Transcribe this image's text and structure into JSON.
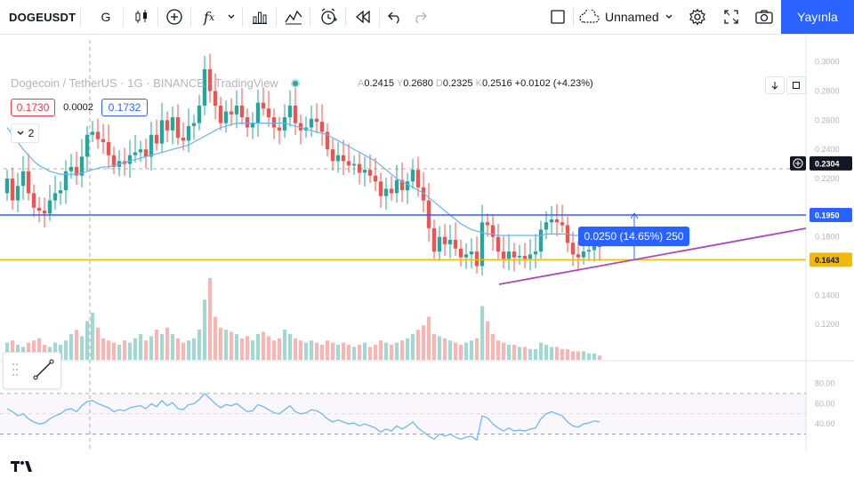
{
  "toolbar": {
    "symbol": "DOGEUSDT",
    "interval": "G",
    "layout_name": "Unnamed",
    "publish_label": "Yayınla"
  },
  "legend": {
    "title": "Dogecoin / TetherUS · 1G · BINANCE · TradingView",
    "open_label": "A",
    "open": "0.2415",
    "high_label": "Y",
    "high": "0.2680",
    "low_label": "D",
    "low": "0.2325",
    "close_label": "K",
    "close": "0.2516",
    "change": "+0.0102 (+4.23%)"
  },
  "trade": {
    "sell_price": "0.1730",
    "spread": "0.0002",
    "buy_price": "0.1732"
  },
  "collapsed_indicators": "2",
  "measure_label": "0.0250 (14.65%) 250",
  "colors": {
    "up": "#26a69a",
    "down": "#ef5350",
    "ma": "#64b5f6",
    "rsi": "#64b5f6",
    "blue_line": "#2962ff",
    "orange_line": "#f0b90b",
    "trend_line": "#ab47bc",
    "accent": "#2962ff"
  },
  "chart_data": {
    "type": "candlestick",
    "price_axis_ticks": [
      "0.3000",
      "0.2800",
      "0.2600",
      "0.2400",
      "0.2200",
      "0.1800",
      "0.1400",
      "0.1200"
    ],
    "price_tags": {
      "crosshair": "0.2304",
      "resistance": "0.1950",
      "support": "0.1643"
    },
    "rsi_axis_ticks": [
      "80.00",
      "60.00",
      "40.00"
    ],
    "ylim": [
      0.1,
      0.32
    ],
    "close": [
      0.22,
      0.205,
      0.215,
      0.225,
      0.21,
      0.2,
      0.198,
      0.196,
      0.205,
      0.21,
      0.212,
      0.225,
      0.228,
      0.222,
      0.235,
      0.25,
      0.252,
      0.247,
      0.245,
      0.236,
      0.228,
      0.232,
      0.23,
      0.236,
      0.238,
      0.24,
      0.235,
      0.25,
      0.244,
      0.26,
      0.253,
      0.262,
      0.248,
      0.246,
      0.256,
      0.258,
      0.27,
      0.295,
      0.28,
      0.27,
      0.258,
      0.266,
      0.264,
      0.27,
      0.262,
      0.255,
      0.258,
      0.272,
      0.268,
      0.262,
      0.255,
      0.253,
      0.262,
      0.27,
      0.258,
      0.253,
      0.255,
      0.261,
      0.259,
      0.252,
      0.24,
      0.232,
      0.236,
      0.232,
      0.229,
      0.23,
      0.224,
      0.226,
      0.222,
      0.218,
      0.208,
      0.213,
      0.21,
      0.219,
      0.212,
      0.218,
      0.226,
      0.214,
      0.205,
      0.186,
      0.17,
      0.18,
      0.175,
      0.178,
      0.172,
      0.166,
      0.168,
      0.17,
      0.16,
      0.19,
      0.188,
      0.18,
      0.17,
      0.165,
      0.17,
      0.166,
      0.167,
      0.165,
      0.168,
      0.17,
      0.185,
      0.19,
      0.192,
      0.19,
      0.188,
      0.176,
      0.168,
      0.166,
      0.17,
      0.171,
      0.174,
      0.173
    ],
    "open": [
      0.21,
      0.22,
      0.205,
      0.215,
      0.225,
      0.21,
      0.2,
      0.198,
      0.196,
      0.205,
      0.21,
      0.212,
      0.225,
      0.228,
      0.222,
      0.235,
      0.25,
      0.252,
      0.247,
      0.245,
      0.236,
      0.228,
      0.232,
      0.23,
      0.236,
      0.238,
      0.24,
      0.235,
      0.25,
      0.244,
      0.26,
      0.253,
      0.262,
      0.248,
      0.246,
      0.256,
      0.258,
      0.27,
      0.295,
      0.28,
      0.27,
      0.258,
      0.266,
      0.264,
      0.27,
      0.262,
      0.255,
      0.258,
      0.272,
      0.268,
      0.262,
      0.255,
      0.253,
      0.262,
      0.27,
      0.258,
      0.253,
      0.255,
      0.261,
      0.259,
      0.252,
      0.24,
      0.232,
      0.236,
      0.232,
      0.229,
      0.23,
      0.224,
      0.226,
      0.222,
      0.218,
      0.208,
      0.213,
      0.21,
      0.219,
      0.212,
      0.218,
      0.226,
      0.214,
      0.205,
      0.186,
      0.17,
      0.18,
      0.175,
      0.178,
      0.172,
      0.166,
      0.168,
      0.17,
      0.16,
      0.19,
      0.188,
      0.18,
      0.17,
      0.165,
      0.17,
      0.166,
      0.167,
      0.165,
      0.168,
      0.17,
      0.185,
      0.19,
      0.192,
      0.19,
      0.188,
      0.176,
      0.168,
      0.166,
      0.17,
      0.171,
      0.174
    ],
    "ma": [
      0.255,
      0.25,
      0.245,
      0.24,
      0.236,
      0.232,
      0.229,
      0.227,
      0.225,
      0.224,
      0.223,
      0.223,
      0.223,
      0.223,
      0.224,
      0.225,
      0.226,
      0.227,
      0.228,
      0.228,
      0.229,
      0.23,
      0.231,
      0.232,
      0.233,
      0.234,
      0.235,
      0.236,
      0.237,
      0.238,
      0.239,
      0.24,
      0.241,
      0.242,
      0.243,
      0.245,
      0.247,
      0.249,
      0.251,
      0.253,
      0.255,
      0.256,
      0.257,
      0.258,
      0.258,
      0.258,
      0.258,
      0.258,
      0.258,
      0.258,
      0.258,
      0.258,
      0.258,
      0.257,
      0.256,
      0.255,
      0.254,
      0.253,
      0.252,
      0.251,
      0.25,
      0.248,
      0.246,
      0.244,
      0.242,
      0.24,
      0.238,
      0.236,
      0.234,
      0.232,
      0.229,
      0.226,
      0.223,
      0.22,
      0.218,
      0.216,
      0.214,
      0.212,
      0.21,
      0.207,
      0.204,
      0.201,
      0.198,
      0.195,
      0.192,
      0.189,
      0.187,
      0.185,
      0.184,
      0.183,
      0.182,
      0.182,
      0.181,
      0.181,
      0.181,
      0.181,
      0.181,
      0.181,
      0.181,
      0.181,
      0.181,
      0.182,
      0.182,
      0.182,
      0.182,
      0.182,
      0.181,
      0.181,
      0.181,
      0.181,
      0.181,
      0.181
    ],
    "volume": [
      8,
      9,
      7,
      6,
      8,
      9,
      10,
      7,
      6,
      8,
      7,
      9,
      12,
      14,
      11,
      18,
      22,
      15,
      10,
      9,
      8,
      7,
      9,
      8,
      10,
      12,
      9,
      11,
      14,
      12,
      15,
      12,
      10,
      8,
      9,
      10,
      14,
      28,
      38,
      20,
      15,
      14,
      13,
      12,
      10,
      11,
      9,
      12,
      13,
      11,
      9,
      10,
      14,
      12,
      10,
      9,
      8,
      9,
      8,
      7,
      9,
      8,
      7,
      8,
      7,
      6,
      7,
      8,
      6,
      7,
      9,
      8,
      7,
      8,
      9,
      10,
      12,
      14,
      16,
      20,
      12,
      11,
      10,
      9,
      8,
      7,
      8,
      9,
      10,
      25,
      18,
      12,
      9,
      8,
      7,
      7,
      6,
      6,
      5,
      5,
      8,
      7,
      6,
      6,
      5,
      5,
      4,
      4,
      4,
      3,
      3,
      2
    ],
    "rsi": [
      55,
      52,
      48,
      50,
      45,
      42,
      40,
      41,
      45,
      48,
      50,
      54,
      55,
      52,
      58,
      62,
      63,
      60,
      58,
      56,
      52,
      54,
      53,
      56,
      57,
      58,
      55,
      60,
      57,
      63,
      58,
      61,
      55,
      54,
      59,
      60,
      64,
      70,
      65,
      60,
      56,
      59,
      58,
      60,
      56,
      52,
      53,
      59,
      57,
      54,
      51,
      50,
      54,
      58,
      52,
      50,
      51,
      54,
      53,
      50,
      45,
      42,
      44,
      42,
      40,
      41,
      38,
      40,
      38,
      36,
      32,
      35,
      33,
      38,
      35,
      38,
      42,
      36,
      32,
      28,
      25,
      30,
      28,
      30,
      27,
      25,
      27,
      28,
      24,
      48,
      46,
      40,
      36,
      33,
      36,
      33,
      34,
      33,
      35,
      36,
      45,
      50,
      52,
      50,
      48,
      42,
      38,
      37,
      40,
      41,
      43,
      42
    ]
  }
}
